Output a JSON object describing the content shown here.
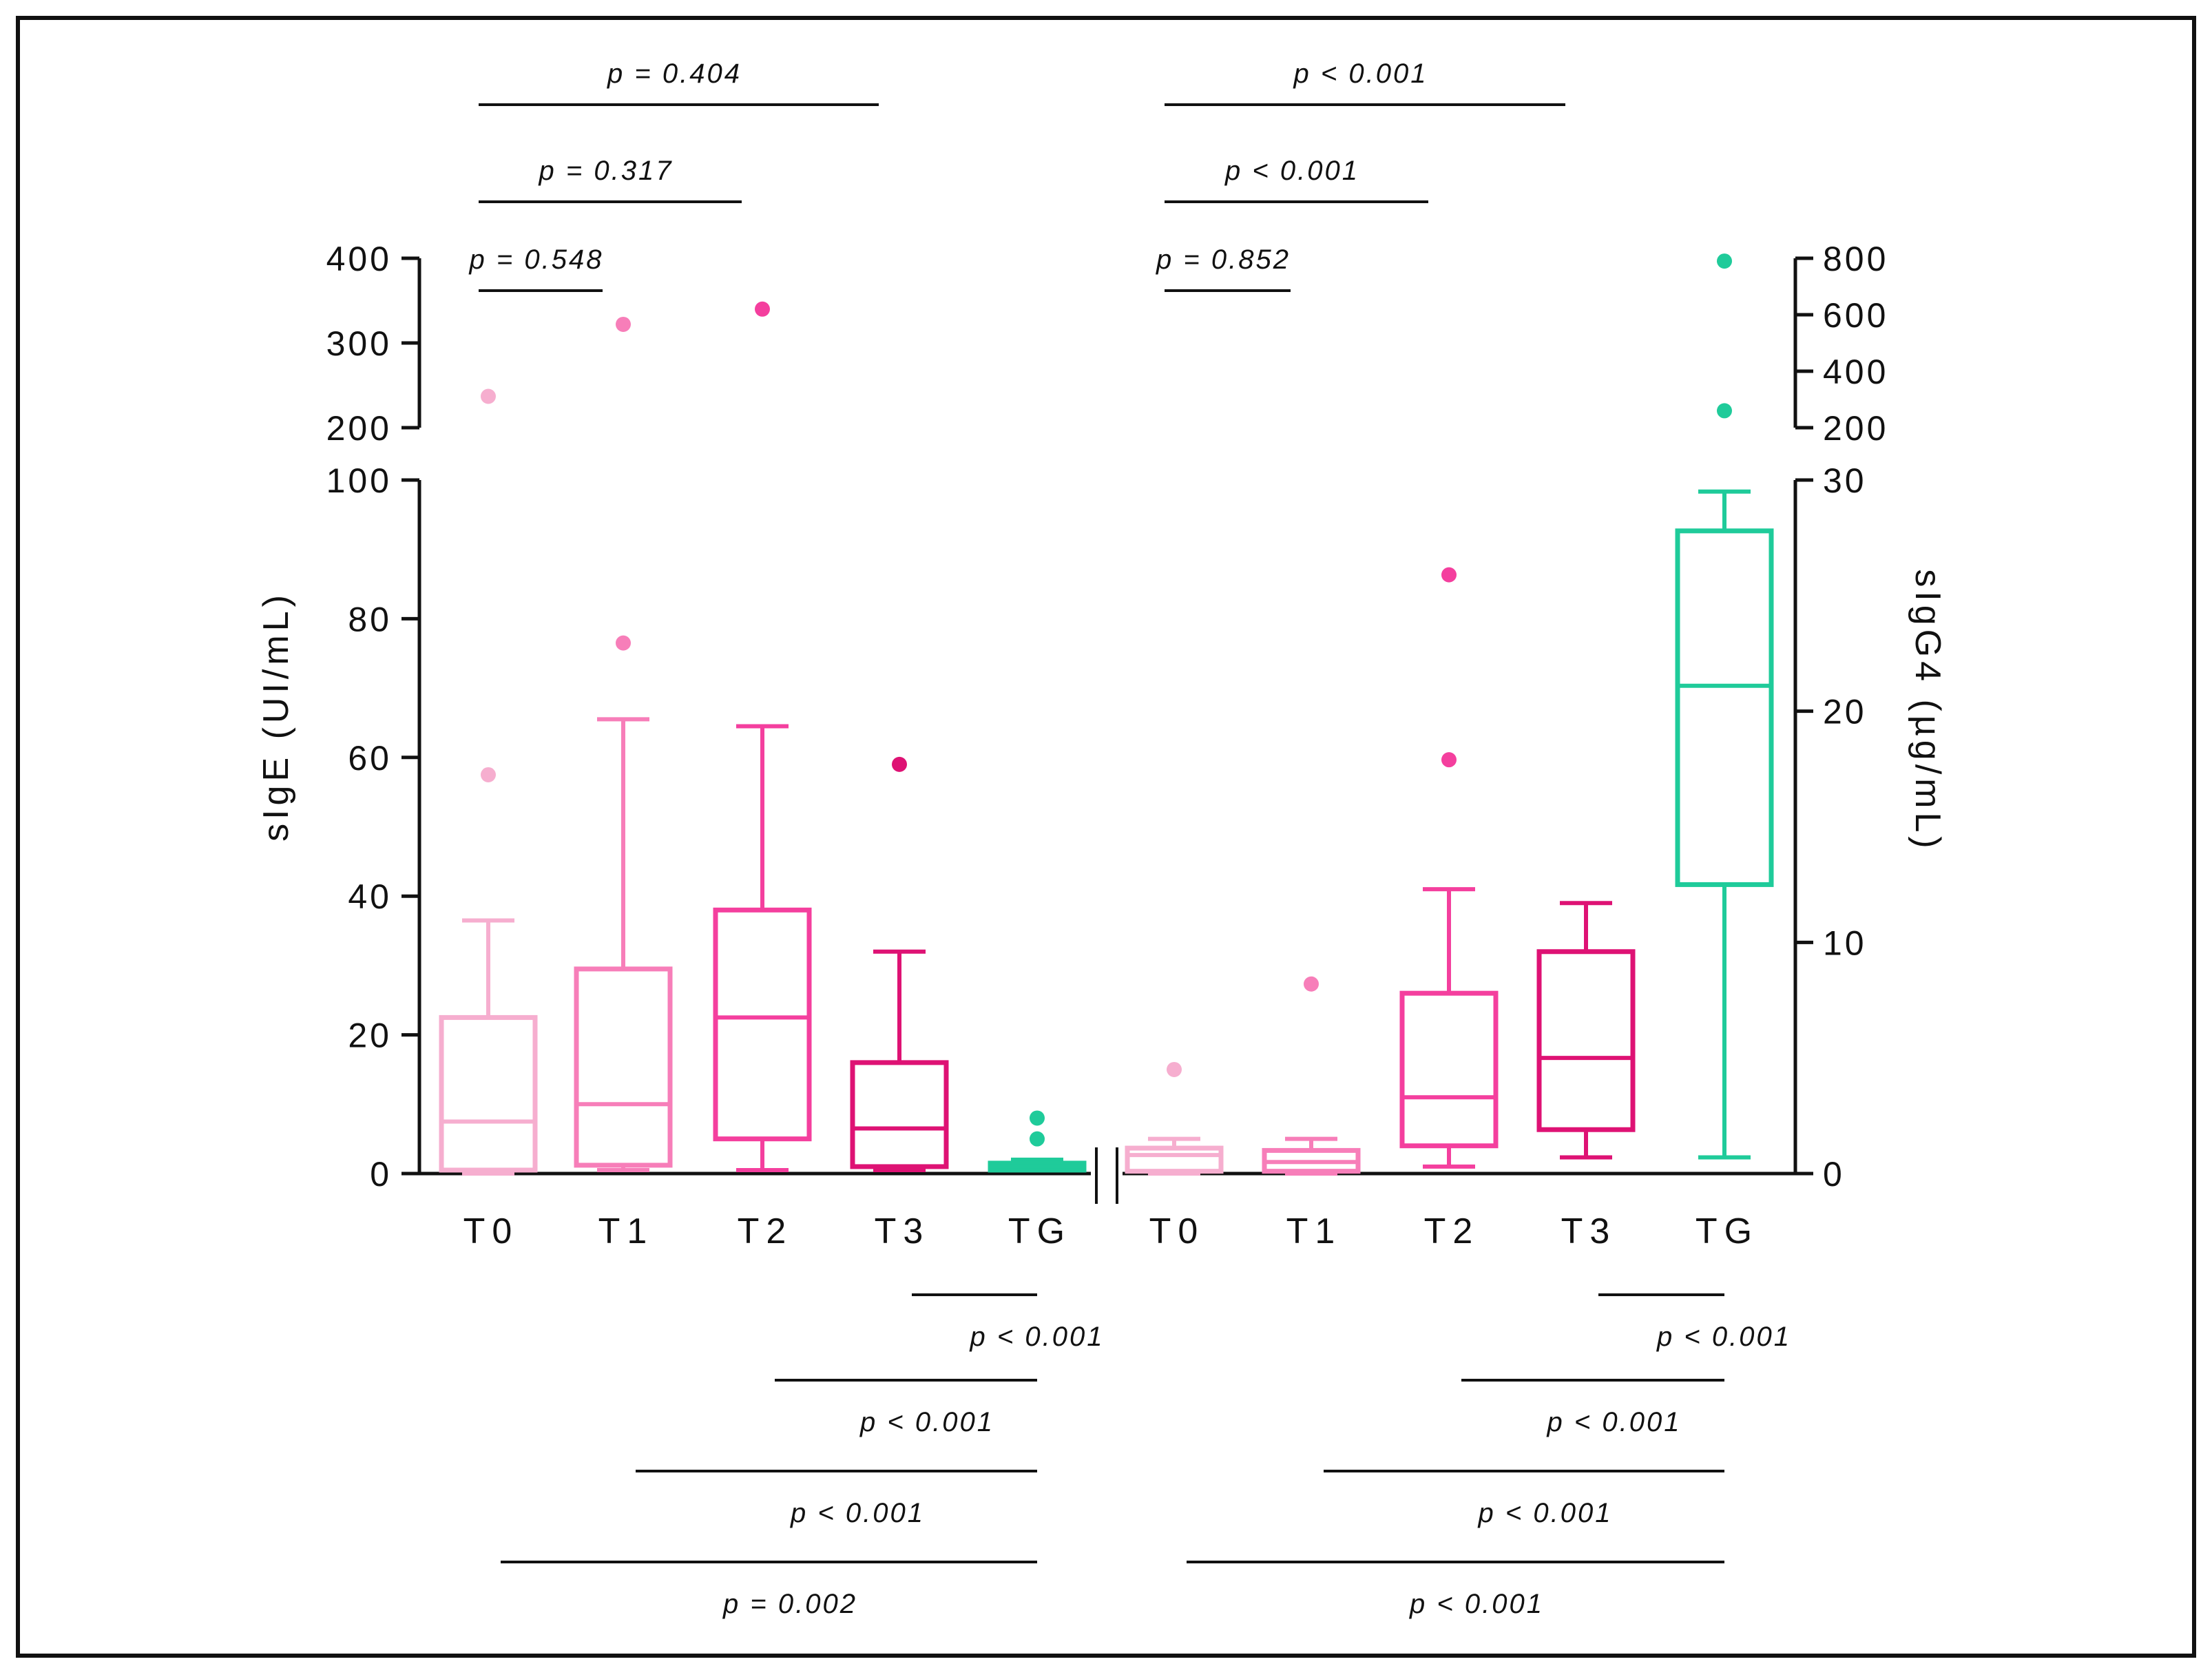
{
  "chart_data": {
    "type": "box",
    "title": "",
    "left_axis": {
      "label": "sIgE (UI/mL)",
      "lower_segment": {
        "range": [
          0,
          100
        ],
        "ticks": [
          "0",
          "20",
          "40",
          "60",
          "80",
          "100"
        ]
      },
      "upper_segment": {
        "range": [
          200,
          400
        ],
        "ticks": [
          "200",
          "300",
          "400"
        ]
      }
    },
    "right_axis": {
      "label": "sIgG4 (µg/mL)",
      "lower_segment": {
        "range": [
          0,
          30
        ],
        "ticks": [
          "0",
          "10",
          "20",
          "30"
        ]
      },
      "upper_segment": {
        "range": [
          200,
          800
        ],
        "ticks": [
          "200",
          "400",
          "600",
          "800"
        ]
      }
    },
    "groups": [
      {
        "name": "sIgE",
        "axis": "left",
        "series": [
          {
            "category": "T0",
            "color": "#F6AECF",
            "whisker_low": 0,
            "q1": 0.5,
            "median": 7.5,
            "q3": 22.5,
            "whisker_high": 36.5,
            "outliers": [
              57.5,
              237
            ]
          },
          {
            "category": "T1",
            "color": "#F77EB9",
            "whisker_low": 0.5,
            "q1": 1.2,
            "median": 10,
            "q3": 29.5,
            "whisker_high": 65.5,
            "outliers": [
              76.5,
              322
            ]
          },
          {
            "category": "T2",
            "color": "#F43F9E",
            "whisker_low": 0.5,
            "q1": 5,
            "median": 22.5,
            "q3": 38,
            "whisker_high": 64.5,
            "outliers": [
              340
            ]
          },
          {
            "category": "T3",
            "color": "#DE1274",
            "whisker_low": 0.5,
            "q1": 1,
            "median": 6.5,
            "q3": 16,
            "whisker_high": 32,
            "outliers": [
              59
            ]
          },
          {
            "category": "TG",
            "color": "#1FCB9A",
            "whisker_low": 0.5,
            "q1": 0.5,
            "median": 1,
            "q3": 1.5,
            "whisker_high": 2,
            "outliers": [
              5,
              8
            ]
          }
        ]
      },
      {
        "name": "sIgG4",
        "axis": "right",
        "series": [
          {
            "category": "T0",
            "color": "#F6AECF",
            "whisker_low": 0,
            "q1": 0.1,
            "median": 0.8,
            "q3": 1.1,
            "whisker_high": 1.5,
            "outliers": [
              4.5
            ]
          },
          {
            "category": "T1",
            "color": "#F77EB9",
            "whisker_low": 0,
            "q1": 0.1,
            "median": 0.5,
            "q3": 1,
            "whisker_high": 1.5,
            "outliers": [
              8.2
            ]
          },
          {
            "category": "T2",
            "color": "#F43F9E",
            "whisker_low": 0.3,
            "q1": 1.2,
            "median": 3.3,
            "q3": 7.8,
            "whisker_high": 12.3,
            "outliers": [
              17.9,
              25.9
            ]
          },
          {
            "category": "T3",
            "color": "#DE1274",
            "whisker_low": 0.7,
            "q1": 1.9,
            "median": 5,
            "q3": 9.6,
            "whisker_high": 11.7,
            "outliers": []
          },
          {
            "category": "TG",
            "color": "#1FCB9A",
            "whisker_low": 0.7,
            "q1": 12.5,
            "median": 21.1,
            "q3": 27.8,
            "whisker_high": 29.5,
            "outliers": [
              260,
              790
            ]
          }
        ]
      }
    ],
    "comparisons": [
      {
        "group": "sIgE",
        "from": "T0",
        "to": "T1",
        "label": "p = 0.548",
        "placement": "top"
      },
      {
        "group": "sIgE",
        "from": "T0",
        "to": "T2",
        "label": "p = 0.317",
        "placement": "top"
      },
      {
        "group": "sIgE",
        "from": "T0",
        "to": "T3",
        "label": "p = 0.404",
        "placement": "top"
      },
      {
        "group": "sIgG4",
        "from": "T0",
        "to": "T1",
        "label": "p = 0.852",
        "placement": "top"
      },
      {
        "group": "sIgG4",
        "from": "T0",
        "to": "T2",
        "label": "p < 0.001",
        "placement": "top"
      },
      {
        "group": "sIgG4",
        "from": "T0",
        "to": "T3",
        "label": "p < 0.001",
        "placement": "top"
      },
      {
        "group": "sIgE",
        "from": "T3",
        "to": "TG",
        "label": "p < 0.001",
        "placement": "bottom"
      },
      {
        "group": "sIgE",
        "from": "T2",
        "to": "TG",
        "label": "p < 0.001",
        "placement": "bottom"
      },
      {
        "group": "sIgE",
        "from": "T1",
        "to": "TG",
        "label": "p < 0.001",
        "placement": "bottom"
      },
      {
        "group": "sIgE",
        "from": "T0",
        "to": "TG",
        "label": "p = 0.002",
        "placement": "bottom"
      },
      {
        "group": "sIgG4",
        "from": "T3",
        "to": "TG",
        "label": "p < 0.001",
        "placement": "bottom"
      },
      {
        "group": "sIgG4",
        "from": "T2",
        "to": "TG",
        "label": "p < 0.001",
        "placement": "bottom"
      },
      {
        "group": "sIgG4",
        "from": "T1",
        "to": "TG",
        "label": "p < 0.001",
        "placement": "bottom"
      },
      {
        "group": "sIgG4",
        "from": "T0",
        "to": "TG",
        "label": "p < 0.001",
        "placement": "bottom"
      }
    ]
  }
}
